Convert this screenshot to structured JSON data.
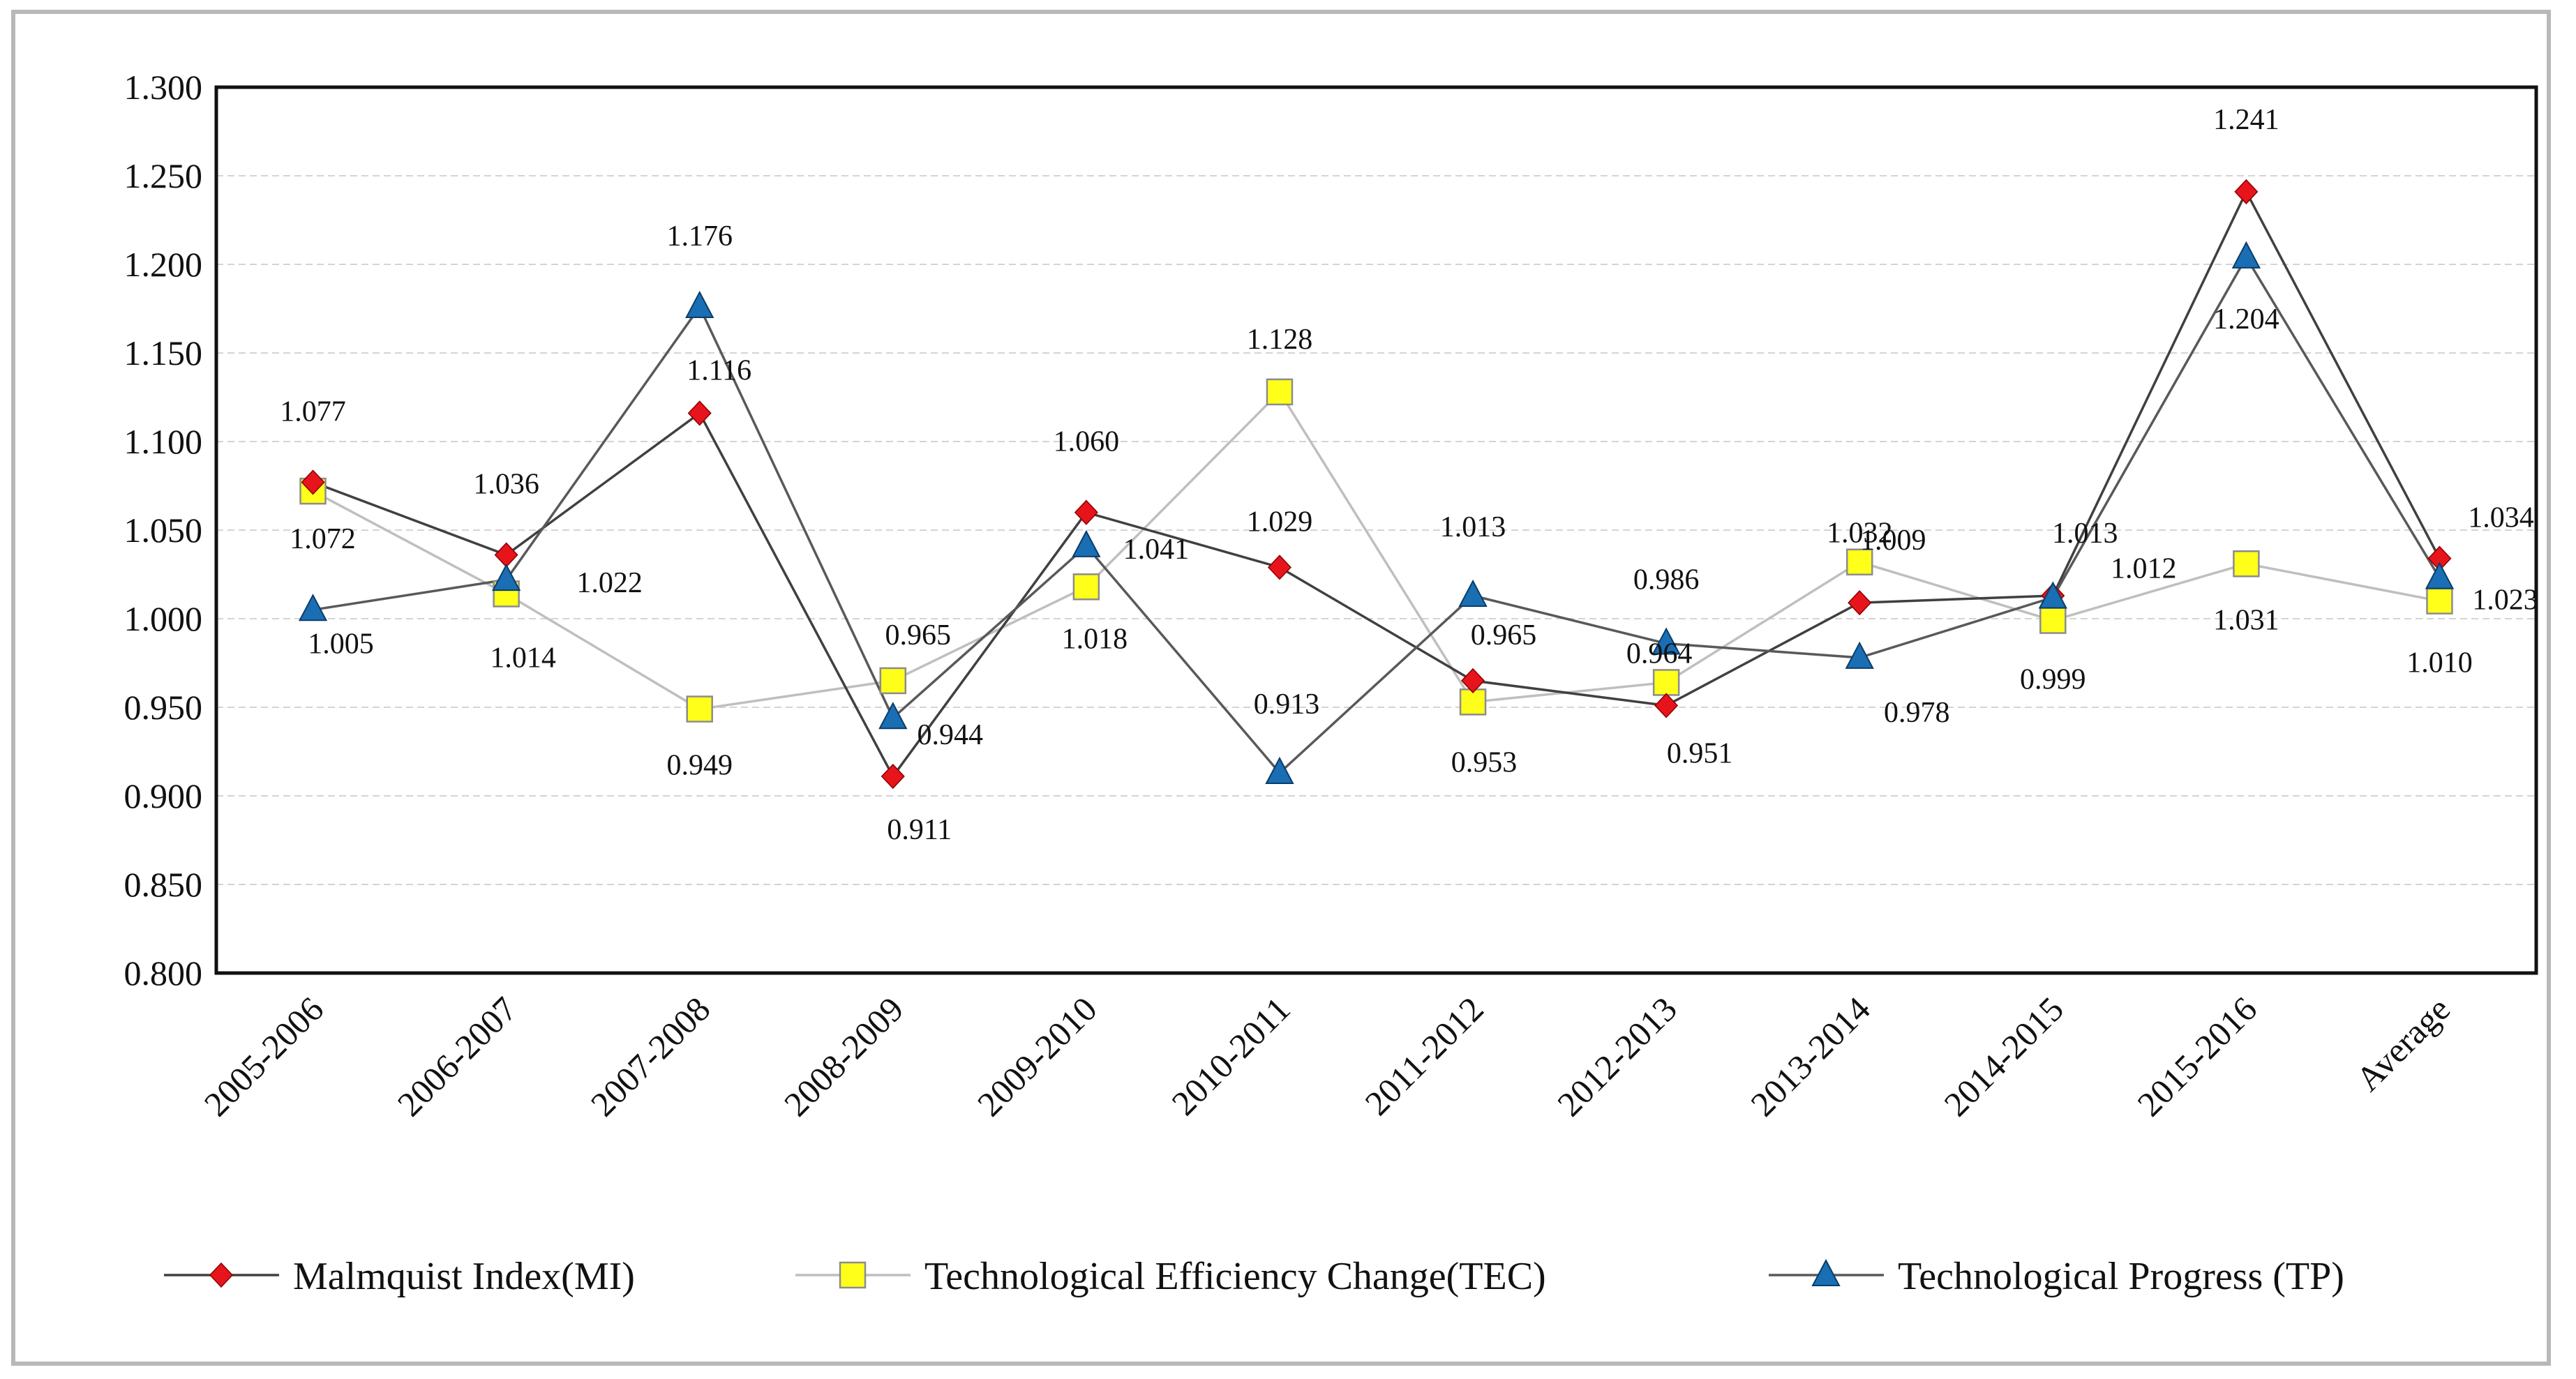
{
  "chart_data": {
    "type": "line",
    "categories": [
      "2005-2006",
      "2006-2007",
      "2007-2008",
      "2008-2009",
      "2009-2010",
      "2010-2011",
      "2011-2012",
      "2012-2013",
      "2013-2014",
      "2014-2015",
      "2015-2016",
      "Average"
    ],
    "ylim": [
      0.8,
      1.3
    ],
    "yticks": [
      "0.800",
      "0.850",
      "0.900",
      "0.950",
      "1.000",
      "1.050",
      "1.100",
      "1.150",
      "1.200",
      "1.250",
      "1.300"
    ],
    "grid": true,
    "legend_position": "bottom",
    "series": [
      {
        "name": "Malmquist Index(MI)",
        "marker": "diamond",
        "marker_color": "#e8141b",
        "line_color": "#404040",
        "values": [
          1.077,
          1.036,
          1.116,
          0.911,
          1.06,
          1.029,
          0.965,
          0.951,
          1.009,
          1.013,
          1.241,
          1.034
        ],
        "labels": [
          "1.077",
          "1.036",
          "1.116",
          "0.911",
          "1.060",
          "1.029",
          "0.965",
          "0.951",
          "1.009",
          "1.013",
          "1.241",
          "1.034"
        ]
      },
      {
        "name": "Technological Efficiency Change(TEC)",
        "marker": "square",
        "marker_color": "#ffff1a",
        "line_color": "#bfbfbf",
        "values": [
          1.072,
          1.014,
          0.949,
          0.965,
          1.018,
          1.128,
          0.953,
          0.964,
          1.032,
          0.999,
          1.031,
          1.01
        ],
        "labels": [
          "1.072",
          "1.014",
          "0.949",
          "0.965",
          "1.018",
          "1.128",
          "0.953",
          "0.964",
          "1.032",
          "0.999",
          "1.031",
          "1.010"
        ]
      },
      {
        "name": "Technological Progress (TP)",
        "marker": "triangle",
        "marker_color": "#1a6eb4",
        "line_color": "#595959",
        "values": [
          1.005,
          1.022,
          1.176,
          0.944,
          1.041,
          0.913,
          1.013,
          0.986,
          0.978,
          1.012,
          1.204,
          1.023
        ],
        "labels": [
          "1.005",
          "1.022",
          "1.176",
          "0.944",
          "1.041",
          "0.913",
          "1.013",
          "0.986",
          "0.978",
          "1.012",
          "1.204",
          "1.023"
        ]
      }
    ]
  }
}
